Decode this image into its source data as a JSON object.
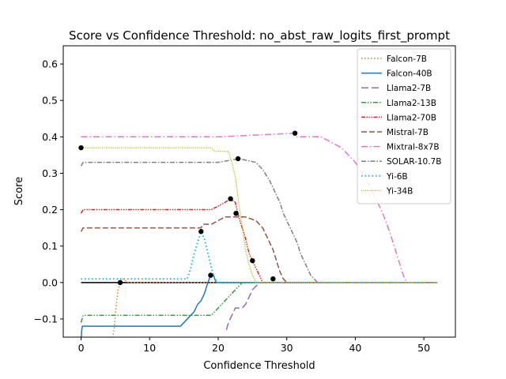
{
  "chart_data": {
    "type": "line",
    "title": "Score vs Confidence Threshold: no_abst_raw_logits_first_prompt",
    "xlabel": "Confidence Threshold",
    "ylabel": "Score",
    "xlim": [
      -2.6,
      54.6
    ],
    "ylim": [
      -0.15,
      0.65
    ],
    "x_ticks": [
      0,
      10,
      20,
      30,
      40,
      50
    ],
    "y_ticks": [
      -0.1,
      0.0,
      0.1,
      0.2,
      0.3,
      0.4,
      0.5,
      0.6
    ],
    "x_tick_labels": [
      "0",
      "10",
      "20",
      "30",
      "40",
      "50"
    ],
    "y_tick_labels": [
      "−0.1",
      "0.0",
      "0.1",
      "0.2",
      "0.3",
      "0.4",
      "0.5",
      "0.6"
    ],
    "grid": false,
    "legend_position": "top-right",
    "baseline": {
      "y": 0.0,
      "x": [
        0,
        52
      ],
      "color": "#000000"
    },
    "series": [
      {
        "name": "Falcon-7B",
        "color": "#ff7f0e",
        "dash": "1.5,2.5",
        "width": 1.5,
        "points": [
          [
            4.5,
            -0.16
          ],
          [
            4.8,
            -0.13
          ],
          [
            5.0,
            -0.09
          ],
          [
            5.2,
            -0.05
          ],
          [
            5.4,
            -0.02
          ],
          [
            5.7,
            0.0
          ],
          [
            6.0,
            0.01
          ],
          [
            7,
            0.0
          ],
          [
            10,
            0.0
          ],
          [
            20,
            0.0
          ],
          [
            30,
            0.0
          ],
          [
            40,
            0.0
          ],
          [
            52,
            0.0
          ]
        ]
      },
      {
        "name": "Falcon-40B",
        "color": "#1f77b4",
        "dash": "",
        "width": 1.5,
        "points": [
          [
            0,
            -0.16
          ],
          [
            0.1,
            -0.13
          ],
          [
            0.2,
            -0.12
          ],
          [
            3,
            -0.12
          ],
          [
            8,
            -0.12
          ],
          [
            14.5,
            -0.12
          ],
          [
            15.0,
            -0.11
          ],
          [
            15.5,
            -0.1
          ],
          [
            16.0,
            -0.09
          ],
          [
            16.5,
            -0.08
          ],
          [
            17.0,
            -0.06
          ],
          [
            17.5,
            -0.05
          ],
          [
            18.0,
            -0.03
          ],
          [
            18.5,
            0.0
          ],
          [
            18.9,
            0.02
          ],
          [
            19.3,
            0.02
          ],
          [
            19.7,
            0.0
          ],
          [
            20.2,
            0.0
          ],
          [
            25,
            0.0
          ],
          [
            52,
            0.0
          ]
        ]
      },
      {
        "name": "Llama2-7B",
        "color": "#9467bd",
        "dash": "9,4",
        "width": 1.5,
        "points": [
          [
            21.2,
            -0.13
          ],
          [
            21.5,
            -0.11
          ],
          [
            22.0,
            -0.09
          ],
          [
            22.5,
            -0.07
          ],
          [
            23.5,
            -0.07
          ],
          [
            24.0,
            -0.06
          ],
          [
            24.5,
            -0.04
          ],
          [
            25.0,
            -0.02
          ],
          [
            25.5,
            -0.01
          ],
          [
            26,
            0.0
          ],
          [
            52,
            0.0
          ]
        ]
      },
      {
        "name": "Llama2-13B",
        "color": "#2ca02c",
        "dash": "6,2,1.5,2,1.5,2",
        "width": 1.5,
        "points": [
          [
            0,
            -0.11
          ],
          [
            0.3,
            -0.09
          ],
          [
            5,
            -0.09
          ],
          [
            10,
            -0.09
          ],
          [
            15,
            -0.09
          ],
          [
            19,
            -0.09
          ],
          [
            19.5,
            -0.08
          ],
          [
            20,
            -0.07
          ],
          [
            20.5,
            -0.06
          ],
          [
            21,
            -0.05
          ],
          [
            21.5,
            -0.04
          ],
          [
            22,
            -0.03
          ],
          [
            22.5,
            -0.02
          ],
          [
            23,
            -0.01
          ],
          [
            23.5,
            0.0
          ],
          [
            24,
            0.0
          ],
          [
            52,
            0.0
          ]
        ]
      },
      {
        "name": "Llama2-70B",
        "color": "#d62728",
        "dash": "5,1.5,1.5,1.5,1.5,1.5,1.5,1.5",
        "width": 1.5,
        "points": [
          [
            0,
            0.19
          ],
          [
            0.3,
            0.2
          ],
          [
            5,
            0.2
          ],
          [
            10,
            0.2
          ],
          [
            15,
            0.2
          ],
          [
            19,
            0.2
          ],
          [
            20,
            0.21
          ],
          [
            21,
            0.22
          ],
          [
            21.8,
            0.23
          ],
          [
            22.5,
            0.22
          ],
          [
            23.0,
            0.18
          ],
          [
            23.5,
            0.15
          ],
          [
            24.0,
            0.12
          ],
          [
            24.5,
            0.08
          ],
          [
            25.0,
            0.06
          ],
          [
            25.5,
            0.04
          ],
          [
            26.0,
            0.02
          ],
          [
            26.5,
            0.0
          ],
          [
            52,
            0.0
          ]
        ]
      },
      {
        "name": "Mistral-7B",
        "color": "#8c564b",
        "dash": "7,3",
        "width": 1.5,
        "points": [
          [
            0,
            0.14
          ],
          [
            0.3,
            0.15
          ],
          [
            5,
            0.15
          ],
          [
            10,
            0.15
          ],
          [
            15,
            0.15
          ],
          [
            17.5,
            0.15
          ],
          [
            17.8,
            0.16
          ],
          [
            19,
            0.16
          ],
          [
            20,
            0.17
          ],
          [
            21,
            0.18
          ],
          [
            24,
            0.18
          ],
          [
            25.5,
            0.17
          ],
          [
            26.5,
            0.15
          ],
          [
            27.0,
            0.13
          ],
          [
            27.5,
            0.11
          ],
          [
            28.0,
            0.09
          ],
          [
            28.5,
            0.06
          ],
          [
            29.0,
            0.03
          ],
          [
            29.5,
            0.01
          ],
          [
            30.0,
            0.0
          ],
          [
            52,
            0.0
          ]
        ]
      },
      {
        "name": "Mixtral-8x7B",
        "color": "#e377c2",
        "dash": "8,3,1.5,3",
        "width": 1.5,
        "points": [
          [
            0,
            0.4
          ],
          [
            10,
            0.4
          ],
          [
            20,
            0.4
          ],
          [
            31,
            0.41
          ],
          [
            31.5,
            0.4
          ],
          [
            35,
            0.4
          ],
          [
            36,
            0.39
          ],
          [
            37,
            0.38
          ],
          [
            38,
            0.37
          ],
          [
            39,
            0.35
          ],
          [
            40,
            0.33
          ],
          [
            41,
            0.3
          ],
          [
            42,
            0.27
          ],
          [
            43,
            0.23
          ],
          [
            44,
            0.19
          ],
          [
            45,
            0.14
          ],
          [
            46,
            0.08
          ],
          [
            47,
            0.02
          ],
          [
            47.5,
            0.0
          ],
          [
            52,
            0.0
          ]
        ]
      },
      {
        "name": "SOLAR-10.7B",
        "color": "#7f7f7f",
        "dash": "6,2,1.5,2",
        "width": 1.5,
        "points": [
          [
            0,
            0.32
          ],
          [
            0.3,
            0.33
          ],
          [
            5,
            0.33
          ],
          [
            10,
            0.33
          ],
          [
            15,
            0.33
          ],
          [
            20,
            0.33
          ],
          [
            23,
            0.34
          ],
          [
            25.5,
            0.33
          ],
          [
            26.5,
            0.31
          ],
          [
            27.5,
            0.28
          ],
          [
            28.5,
            0.24
          ],
          [
            29.0,
            0.22
          ],
          [
            29.5,
            0.19
          ],
          [
            30.0,
            0.17
          ],
          [
            30.5,
            0.15
          ],
          [
            31.0,
            0.13
          ],
          [
            31.5,
            0.11
          ],
          [
            32.0,
            0.08
          ],
          [
            32.5,
            0.06
          ],
          [
            33.0,
            0.04
          ],
          [
            33.5,
            0.02
          ],
          [
            34.0,
            0.01
          ],
          [
            34.5,
            0.0
          ],
          [
            52,
            0.0
          ]
        ]
      },
      {
        "name": "Yi-6B",
        "color": "#17becf",
        "dash": "1.5,3",
        "width": 2,
        "points": [
          [
            0,
            0.01
          ],
          [
            5,
            0.01
          ],
          [
            10,
            0.01
          ],
          [
            15.5,
            0.01
          ],
          [
            16.0,
            0.04
          ],
          [
            16.5,
            0.08
          ],
          [
            17.0,
            0.11
          ],
          [
            17.5,
            0.14
          ],
          [
            18.0,
            0.12
          ],
          [
            18.5,
            0.08
          ],
          [
            19.0,
            0.04
          ],
          [
            19.5,
            0.01
          ],
          [
            20,
            0.0
          ],
          [
            52,
            0.0
          ]
        ]
      },
      {
        "name": "Yi-34B",
        "color": "#bcbd22",
        "dash": "1.2,1.2",
        "width": 1.3,
        "points": [
          [
            0,
            0.37
          ],
          [
            5,
            0.37
          ],
          [
            10,
            0.37
          ],
          [
            15,
            0.37
          ],
          [
            19,
            0.37
          ],
          [
            19.5,
            0.36
          ],
          [
            21.5,
            0.36
          ],
          [
            22,
            0.33
          ],
          [
            22.5,
            0.29
          ],
          [
            23,
            0.22
          ],
          [
            23.3,
            0.18
          ],
          [
            23.6,
            0.14
          ],
          [
            24.0,
            0.09
          ],
          [
            24.5,
            0.05
          ],
          [
            25,
            0.02
          ],
          [
            25.5,
            0.0
          ],
          [
            52,
            0.0
          ]
        ]
      }
    ],
    "markers": [
      {
        "x": 0,
        "y": 0.37
      },
      {
        "x": 5.7,
        "y": 0.0
      },
      {
        "x": 17.5,
        "y": 0.14
      },
      {
        "x": 18.9,
        "y": 0.02
      },
      {
        "x": 21.8,
        "y": 0.23
      },
      {
        "x": 22.6,
        "y": 0.19
      },
      {
        "x": 22.9,
        "y": 0.34
      },
      {
        "x": 25.0,
        "y": 0.06
      },
      {
        "x": 28.0,
        "y": 0.01
      },
      {
        "x": 31.2,
        "y": 0.41
      }
    ]
  }
}
